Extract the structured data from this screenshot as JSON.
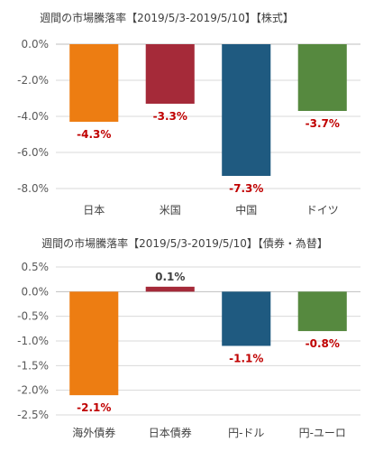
{
  "chart_data": [
    {
      "type": "bar",
      "title": "週間の市場騰落率【2019/5/3-2019/5/10】【株式】",
      "categories": [
        "日本",
        "米国",
        "中国",
        "ドイツ"
      ],
      "values": [
        -4.3,
        -3.3,
        -7.3,
        -3.7
      ],
      "data_labels": [
        "-4.3%",
        "-3.3%",
        "-7.3%",
        "-3.7%"
      ],
      "ylim": [
        -8.0,
        0.0
      ],
      "yticks": [
        0.0,
        -2.0,
        -4.0,
        -6.0,
        -8.0
      ],
      "ytick_labels": [
        "0.0%",
        "-2.0%",
        "-4.0%",
        "-6.0%",
        "-8.0%"
      ],
      "colors": [
        "#ed7d12",
        "#a52a39",
        "#1f5a80",
        "#56893f"
      ],
      "grid": true,
      "xlabel": "",
      "ylabel": ""
    },
    {
      "type": "bar",
      "title": "週間の市場騰落率【2019/5/3-2019/5/10】【債券・為替】",
      "categories": [
        "海外債券",
        "日本債券",
        "円-ドル",
        "円-ユーロ"
      ],
      "values": [
        -2.1,
        0.1,
        -1.1,
        -0.8
      ],
      "data_labels": [
        "-2.1%",
        "0.1%",
        "-1.1%",
        "-0.8%"
      ],
      "ylim": [
        -2.5,
        0.5
      ],
      "yticks": [
        0.5,
        0.0,
        -0.5,
        -1.0,
        -1.5,
        -2.0,
        -2.5
      ],
      "ytick_labels": [
        "0.5%",
        "0.0%",
        "-0.5%",
        "-1.0%",
        "-1.5%",
        "-2.0%",
        "-2.5%"
      ],
      "colors": [
        "#ed7d12",
        "#a52a39",
        "#1f5a80",
        "#56893f"
      ],
      "grid": true,
      "xlabel": "",
      "ylabel": ""
    }
  ]
}
